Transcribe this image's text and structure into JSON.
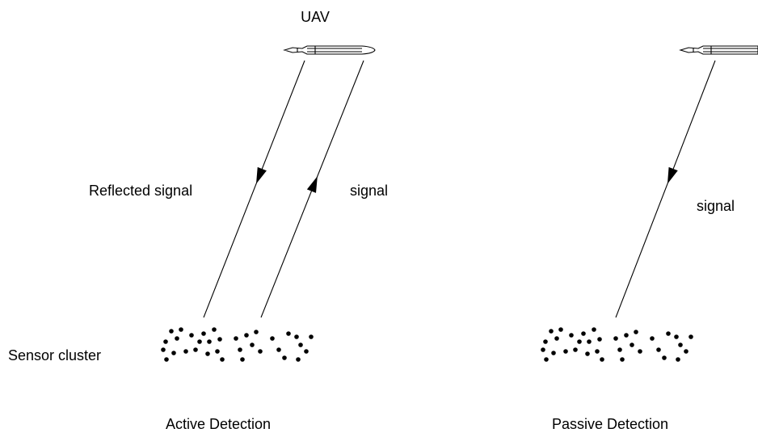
{
  "panels": [
    {
      "uav": "UAV",
      "labels": [
        "Reflected signal",
        "signal"
      ],
      "cluster": "Sensor cluster",
      "caption": "Active Detection"
    },
    {
      "labels": [
        "signal"
      ],
      "caption": "Passive Detection"
    }
  ]
}
